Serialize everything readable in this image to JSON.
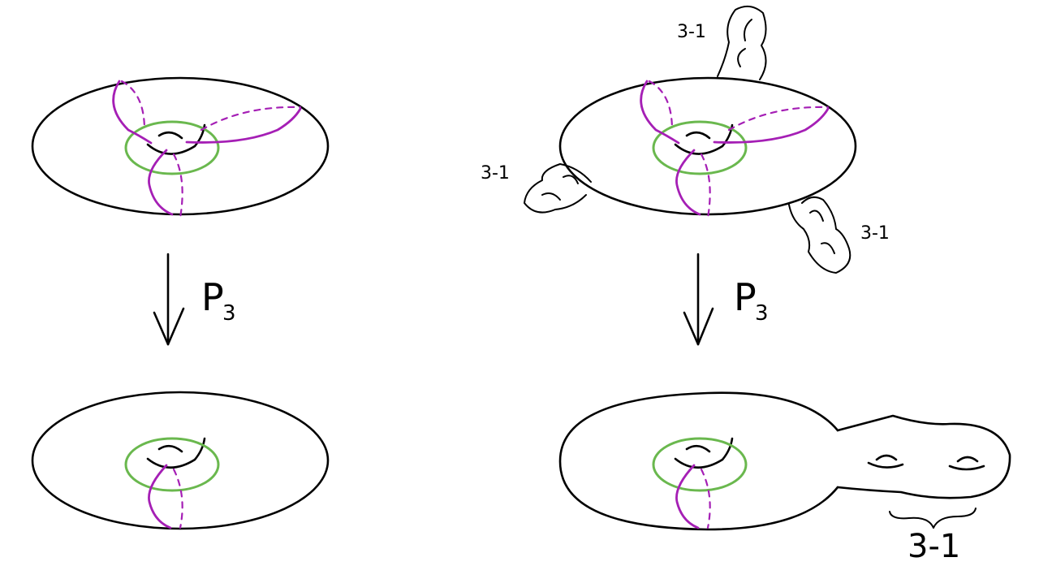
{
  "figure": {
    "colors": {
      "surface_line": "#000000",
      "green_curve": "#6ab84e",
      "purple_curves": "#a51fb5",
      "background": "#ffffff"
    },
    "left_panel": {
      "map_label": "P",
      "map_subscript": "3"
    },
    "right_panel": {
      "map_label": "P",
      "map_subscript": "3",
      "handle_labels": [
        "3-1",
        "3-1",
        "3-1"
      ],
      "brace_label": "3-1"
    }
  }
}
